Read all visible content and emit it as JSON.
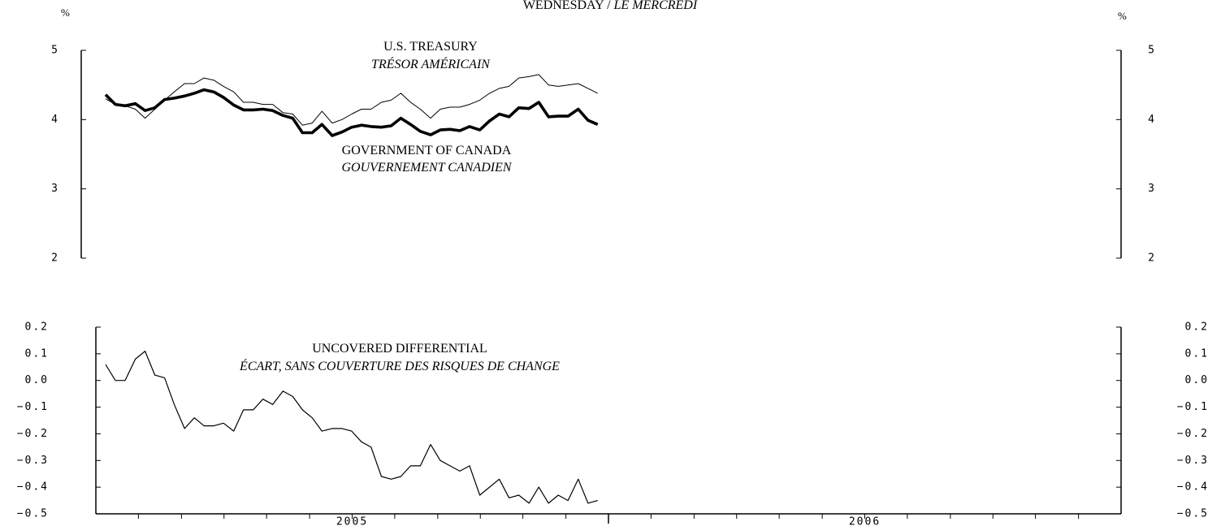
{
  "chart_data": [
    {
      "type": "line",
      "title": "WEDNESDAY /",
      "subtitle": "LE MERCREDI",
      "ylabel": "%",
      "y2label": "%",
      "ylim": [
        2,
        5
      ],
      "yticks": [
        2,
        3,
        4,
        5
      ],
      "y2lim": [
        2,
        5
      ],
      "y2ticks": [
        2,
        3,
        4,
        5
      ],
      "xlim": [
        2005,
        2007
      ],
      "x": [
        2005.019,
        2005.038,
        2005.057,
        2005.077,
        2005.096,
        2005.115,
        2005.134,
        2005.153,
        2005.173,
        2005.192,
        2005.211,
        2005.23,
        2005.249,
        2005.269,
        2005.288,
        2005.307,
        2005.326,
        2005.345,
        2005.365,
        2005.384,
        2005.403,
        2005.422,
        2005.441,
        2005.461,
        2005.48,
        2005.499,
        2005.518,
        2005.537,
        2005.557,
        2005.576,
        2005.595,
        2005.614,
        2005.633,
        2005.653,
        2005.672,
        2005.691,
        2005.71,
        2005.729,
        2005.749,
        2005.768,
        2005.787,
        2005.806,
        2005.825,
        2005.845,
        2005.864,
        2005.883,
        2005.902,
        2005.921,
        2005.941,
        2005.96,
        2005.979
      ],
      "series": [
        {
          "name": "U.S. TREASURY",
          "name_fr": "TRÉSOR AMÉRICAIN",
          "color": "#000000",
          "values": [
            4.3,
            4.22,
            4.2,
            4.15,
            4.02,
            4.15,
            4.28,
            4.4,
            4.52,
            4.52,
            4.6,
            4.57,
            4.48,
            4.4,
            4.25,
            4.25,
            4.22,
            4.22,
            4.1,
            4.08,
            3.92,
            3.95,
            4.12,
            3.95,
            4.0,
            4.08,
            4.15,
            4.15,
            4.25,
            4.28,
            4.38,
            4.25,
            4.15,
            4.02,
            4.15,
            4.18,
            4.18,
            4.22,
            4.28,
            4.38,
            4.45,
            4.48,
            4.6,
            4.62,
            4.65,
            4.5,
            4.48,
            4.5,
            4.52,
            4.45,
            4.38
          ]
        },
        {
          "name": "GOVERNMENT OF CANADA",
          "name_fr": "GOUVERNEMENT CANADIEN",
          "color": "#000000",
          "values": [
            4.36,
            4.22,
            4.2,
            4.23,
            4.13,
            4.17,
            4.29,
            4.31,
            4.34,
            4.38,
            4.43,
            4.4,
            4.32,
            4.21,
            4.14,
            4.14,
            4.15,
            4.13,
            4.06,
            4.02,
            3.81,
            3.81,
            3.93,
            3.77,
            3.82,
            3.89,
            3.92,
            3.9,
            3.89,
            3.91,
            4.02,
            3.93,
            3.83,
            3.78,
            3.85,
            3.86,
            3.84,
            3.9,
            3.85,
            3.98,
            4.08,
            4.04,
            4.17,
            4.16,
            4.25,
            4.04,
            4.05,
            4.05,
            4.15,
            3.99,
            3.93
          ]
        }
      ]
    },
    {
      "type": "line",
      "ylim": [
        -0.5,
        0.2
      ],
      "yticks": [
        {
          "value": -0.5,
          "label": "−0.5"
        },
        {
          "value": -0.4,
          "label": "−0.4"
        },
        {
          "value": -0.3,
          "label": "−0.3"
        },
        {
          "value": -0.2,
          "label": "−0.2"
        },
        {
          "value": -0.1,
          "label": "−0.1"
        },
        {
          "value": 0,
          "label": "0.0"
        },
        0.1,
        0.2
      ],
      "y2lim": [
        -0.5,
        0.2
      ],
      "y2ticks": [
        {
          "value": -0.5,
          "label": "−0.5"
        },
        {
          "value": -0.4,
          "label": "−0.4"
        },
        {
          "value": -0.3,
          "label": "−0.3"
        },
        {
          "value": -0.2,
          "label": "−0.2"
        },
        {
          "value": -0.1,
          "label": "−0.1"
        },
        {
          "value": 0,
          "label": "0.0"
        },
        0.1,
        0.2
      ],
      "xlim": [
        2005,
        2007
      ],
      "xticks": [
        {
          "value": 2005.5,
          "label": "2005"
        },
        {
          "value": 2006.5,
          "label": "2006"
        }
      ],
      "x_major_ticks": [
        2006
      ],
      "x_minor_ticks": [
        2005.083,
        2005.167,
        2005.25,
        2005.333,
        2005.417,
        2005.5,
        2005.583,
        2005.667,
        2005.75,
        2005.833,
        2005.917,
        2006.083,
        2006.167,
        2006.25,
        2006.333,
        2006.417,
        2006.5,
        2006.583,
        2006.667,
        2006.75,
        2006.833,
        2006.917
      ],
      "x": [
        2005.019,
        2005.038,
        2005.057,
        2005.077,
        2005.096,
        2005.115,
        2005.134,
        2005.153,
        2005.173,
        2005.192,
        2005.211,
        2005.23,
        2005.249,
        2005.269,
        2005.288,
        2005.307,
        2005.326,
        2005.345,
        2005.365,
        2005.384,
        2005.403,
        2005.422,
        2005.441,
        2005.461,
        2005.48,
        2005.499,
        2005.518,
        2005.537,
        2005.557,
        2005.576,
        2005.595,
        2005.614,
        2005.633,
        2005.653,
        2005.672,
        2005.691,
        2005.71,
        2005.729,
        2005.749,
        2005.768,
        2005.787,
        2005.806,
        2005.825,
        2005.845,
        2005.864,
        2005.883,
        2005.902,
        2005.921,
        2005.941,
        2005.96,
        2005.979
      ],
      "series": [
        {
          "name": "UNCOVERED DIFFERENTIAL",
          "name_fr": "ÉCART, SANS COUVERTURE DES RISQUES DE CHANGE",
          "color": "#000000",
          "values": [
            0.06,
            0,
            0,
            0.08,
            0.11,
            0.02,
            0.01,
            -0.09,
            -0.18,
            -0.14,
            -0.17,
            -0.17,
            -0.16,
            -0.19,
            -0.11,
            -0.11,
            -0.07,
            -0.09,
            -0.04,
            -0.06,
            -0.11,
            -0.14,
            -0.19,
            -0.18,
            -0.18,
            -0.19,
            -0.23,
            -0.25,
            -0.36,
            -0.37,
            -0.36,
            -0.32,
            -0.32,
            -0.24,
            -0.3,
            -0.32,
            -0.34,
            -0.32,
            -0.43,
            -0.4,
            -0.37,
            -0.44,
            -0.43,
            -0.46,
            -0.4,
            -0.46,
            -0.43,
            -0.45,
            -0.37,
            -0.46,
            -0.45
          ]
        }
      ]
    }
  ]
}
